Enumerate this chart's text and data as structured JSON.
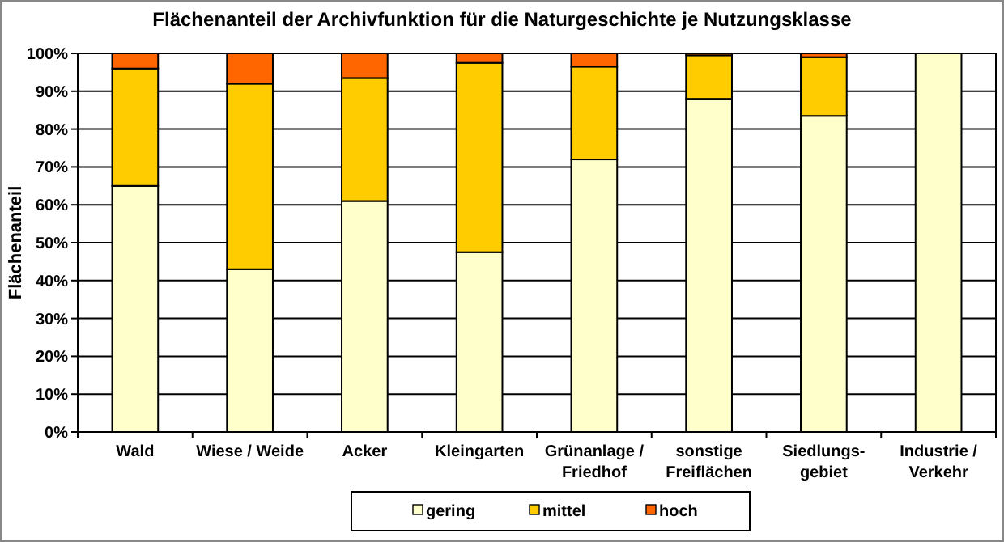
{
  "chart_data": {
    "type": "bar",
    "title": "Flächenanteil  der Archivfunktion  für die Naturgeschichte  je Nutzungsklasse",
    "ylabel": "Flächenanteil",
    "categories": [
      "Wald",
      "Wiese / Weide",
      "Acker",
      "Kleingarten",
      "Grünanlage /\nFriedhof",
      "sonstige\nFreiflächen",
      "Siedlungs-\ngebiet",
      "Industrie /\nVerkehr"
    ],
    "stacked": true,
    "series": [
      {
        "name": "gering",
        "color": "#ffffcc",
        "values": [
          65,
          43,
          61,
          47.5,
          72,
          88,
          83.5,
          100
        ]
      },
      {
        "name": "mittel",
        "color": "#ffcc00",
        "values": [
          31,
          49,
          32.5,
          50,
          24.5,
          11.5,
          15.5,
          0
        ]
      },
      {
        "name": "hoch",
        "color": "#ff6600",
        "values": [
          4,
          8,
          6.5,
          2.5,
          3.5,
          0.5,
          1,
          0
        ]
      }
    ],
    "ylim": [
      0,
      100
    ],
    "yticks": [
      {
        "value": 0,
        "label": "0%"
      },
      {
        "value": 10,
        "label": "10%"
      },
      {
        "value": 20,
        "label": "20%"
      },
      {
        "value": 30,
        "label": "30%"
      },
      {
        "value": 40,
        "label": "40%"
      },
      {
        "value": 50,
        "label": "50%"
      },
      {
        "value": 60,
        "label": "60%"
      },
      {
        "value": 70,
        "label": "70%"
      },
      {
        "value": 80,
        "label": "80%"
      },
      {
        "value": 90,
        "label": "90%"
      },
      {
        "value": 100,
        "label": "100%"
      }
    ],
    "grid": "y",
    "legend": "bottom"
  }
}
